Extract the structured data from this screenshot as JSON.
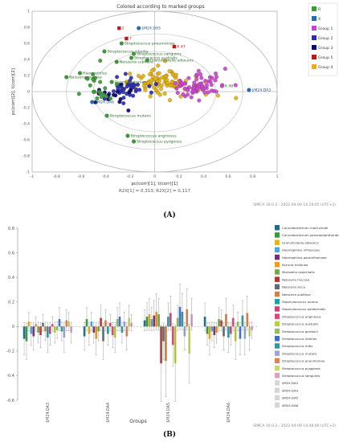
{
  "panels": {
    "a": "(A)",
    "b": "(B)"
  },
  "chart_data": [
    {
      "type": "scatter",
      "title": "Colored according to marked groups",
      "xlabel": "pc(corr)[1], t(corr)[1]",
      "ylabel": "pc(corr)[2], t(corr)[2]",
      "subtitle": "R2X[1] = 0,313;  R2X[2] = 0,117",
      "footer": "SIMCA 16.0.2 - 2022-04-09 14:19:05 (UTC+2)",
      "xlim": [
        -1,
        1
      ],
      "ylim": [
        -1,
        1
      ],
      "x_ticks": [
        "-1",
        "-0.8",
        "-0.6",
        "-0.4",
        "-0.2",
        "0",
        "0.2",
        "0.4",
        "0.6",
        "0.8",
        "1"
      ],
      "y_ticks": [
        "1",
        "0.8",
        "0.6",
        "0.4",
        "0.2",
        "0",
        "-0.2",
        "-0.4",
        "-0.6",
        "-0.8",
        "-1"
      ],
      "legend_position": "right",
      "legend": [
        {
          "label": "R",
          "color": "#3a9b35"
        },
        {
          "label": "X",
          "color": "#1f6fb5"
        },
        {
          "label": "Group 1",
          "color": "#cc44cc"
        },
        {
          "label": "Group 2",
          "color": "#2d2db0"
        },
        {
          "label": "Group 3",
          "color": "#0a0a6e"
        },
        {
          "label": "Group 5",
          "color": "#c41818"
        },
        {
          "label": "Group 4",
          "color": "#e6b012"
        }
      ],
      "labeled_points": [
        {
          "label": "Streptococcus pneumoniae",
          "x": -0.27,
          "y": 0.6,
          "group": "R"
        },
        {
          "label": "Streptococcus infantis",
          "x": -0.41,
          "y": 0.5,
          "group": "R"
        },
        {
          "label": "Streptococcus sanguinis",
          "x": -0.17,
          "y": 0.47,
          "group": "R"
        },
        {
          "label": "Streptococcus australis",
          "x": -0.19,
          "y": 0.42,
          "group": "R"
        },
        {
          "label": "Neisseria subflava",
          "x": -0.31,
          "y": 0.37,
          "group": "R"
        },
        {
          "label": "Granulicatella adiacens",
          "x": -0.06,
          "y": 0.39,
          "group": "R"
        },
        {
          "label": "Haemophilus",
          "x": -0.61,
          "y": 0.23,
          "group": "R"
        },
        {
          "label": "Neisseria mucosa",
          "x": -0.72,
          "y": 0.18,
          "group": "R"
        },
        {
          "label": "Corynebacterium",
          "x": -0.35,
          "y": 0.12,
          "group": "R"
        },
        {
          "label": "Streptococcus mutans",
          "x": -0.39,
          "y": -0.3,
          "group": "R"
        },
        {
          "label": "Streptococcus anginosus",
          "x": -0.22,
          "y": -0.55,
          "group": "R"
        },
        {
          "label": "Streptococcus pyogenes",
          "x": -0.17,
          "y": -0.62,
          "group": "R"
        },
        {
          "label": "$M24.DA5",
          "x": -0.13,
          "y": 0.79,
          "group": "X"
        },
        {
          "label": "$M24.DA3",
          "x": 0.77,
          "y": 0.02,
          "group": "X"
        },
        {
          "label": "$M24.DA6",
          "x": -0.51,
          "y": -0.13,
          "group": "X"
        },
        {
          "label": "2",
          "x": -0.29,
          "y": 0.79,
          "group": "Group 5"
        },
        {
          "label": "7",
          "x": -0.23,
          "y": 0.66,
          "group": "Group 5"
        },
        {
          "label": "K 47",
          "x": 0.16,
          "y": 0.56,
          "group": "Group 5"
        },
        {
          "label": "K 48",
          "x": 0.55,
          "y": 0.07,
          "group": "Group 1"
        }
      ],
      "clusters": [
        {
          "group": "Group 4",
          "cx": 0.08,
          "cy": 0.11,
          "sx": 0.15,
          "sy": 0.09,
          "n": 95
        },
        {
          "group": "Group 1",
          "cx": 0.33,
          "cy": 0.07,
          "sx": 0.1,
          "sy": 0.08,
          "n": 70
        },
        {
          "group": "Group 2",
          "cx": -0.22,
          "cy": 0.04,
          "sx": 0.1,
          "sy": 0.08,
          "n": 42
        },
        {
          "group": "Group 3",
          "cx": -0.38,
          "cy": -0.05,
          "sx": 0.09,
          "sy": 0.06,
          "n": 16
        },
        {
          "group": "R",
          "cx": -0.47,
          "cy": 0.06,
          "sx": 0.09,
          "sy": 0.13,
          "n": 22
        }
      ]
    },
    {
      "type": "bar",
      "xlabel": "Groups",
      "footer": "SIMCA 16.0.2 - 2022-04-09 14:08:00 (UTC+2)",
      "ylim": [
        -0.6,
        0.8
      ],
      "y_ticks": [
        "0.8",
        "0.6",
        "0.4",
        "0.2",
        "0",
        "-0.2",
        "-0.4",
        "-0.6"
      ],
      "categories": [
        "$M24.DA3",
        "$M24.DA4",
        "$M24.DA5",
        "$M24.DA6"
      ],
      "legend_position": "right",
      "series": [
        {
          "name": "Corynebacterium matruchotii",
          "color": "#1d6b8f",
          "values": [
            -0.1,
            -0.08,
            0.05,
            0.08
          ]
        },
        {
          "name": "Corynebacterium pseudodiphtheriticum",
          "color": "#2f9e3a",
          "values": [
            -0.12,
            0.06,
            0.08,
            -0.06
          ]
        },
        {
          "name": "Granulicatella adiacens",
          "color": "#e8b410",
          "values": [
            0.04,
            -0.06,
            0.1,
            -0.1
          ]
        },
        {
          "name": "Haemophilus influenzae",
          "color": "#46a7dd",
          "values": [
            -0.06,
            0.04,
            0.06,
            -0.04
          ]
        },
        {
          "name": "Haemophilus parainfluenzae",
          "color": "#7a2a7a",
          "values": [
            -0.08,
            -0.05,
            0.09,
            -0.07
          ]
        },
        {
          "name": "Kocuria kristinae",
          "color": "#f39a1a",
          "values": [
            0.02,
            -0.1,
            0.12,
            -0.05
          ]
        },
        {
          "name": "Moraxella catarrhalis",
          "color": "#6ea84a",
          "values": [
            -0.05,
            -0.04,
            0.1,
            0.06
          ]
        },
        {
          "name": "Neisseria mucosa",
          "color": "#b8352b",
          "values": [
            -0.07,
            0.07,
            -0.3,
            0.05
          ]
        },
        {
          "name": "Neisseria sicca",
          "color": "#5a6b7a",
          "values": [
            0.03,
            -0.12,
            -0.12,
            -0.08
          ]
        },
        {
          "name": "Neisseria subflava",
          "color": "#d48040",
          "values": [
            -0.04,
            0.05,
            -0.28,
            0.1
          ]
        },
        {
          "name": "Staphylococcus aureus",
          "color": "#18a3a3",
          "values": [
            -0.09,
            -0.06,
            0.08,
            -0.09
          ]
        },
        {
          "name": "Staphylococcus epidermidis",
          "color": "#d0417a",
          "values": [
            -0.06,
            0.03,
            0.11,
            -0.06
          ]
        },
        {
          "name": "Streptococcus anginosus",
          "color": "#e0457b",
          "values": [
            0.02,
            -0.07,
            -0.15,
            0.07
          ]
        },
        {
          "name": "Streptococcus australis",
          "color": "#b9d233",
          "values": [
            -0.05,
            -0.09,
            -0.3,
            -0.12
          ]
        },
        {
          "name": "Streptococcus gordonii",
          "color": "#8fbf62",
          "values": [
            -0.03,
            0.06,
            0.07,
            0.04
          ]
        },
        {
          "name": "Streptococcus infantis",
          "color": "#3d6fd0",
          "values": [
            0.06,
            0.08,
            0.16,
            -0.1
          ]
        },
        {
          "name": "Streptococcus mitis",
          "color": "#2c9a9a",
          "values": [
            -0.04,
            -0.05,
            0.12,
            0.09
          ]
        },
        {
          "name": "Streptococcus mutans",
          "color": "#98a8d8",
          "values": [
            -0.09,
            0.04,
            -0.08,
            -0.1
          ]
        },
        {
          "name": "Streptococcus pneumoniae",
          "color": "#e87e4a",
          "values": [
            0.05,
            -0.08,
            0.14,
            0.11
          ]
        },
        {
          "name": "Streptococcus pyogenes",
          "color": "#c8da66",
          "values": [
            0.04,
            0.07,
            -0.22,
            -0.08
          ]
        },
        {
          "name": "Streptococcus sanguinis",
          "color": "#dca0c6",
          "values": [
            -0.05,
            0.03,
            0.1,
            -0.03
          ]
        },
        {
          "name": "$M24.DA3",
          "color": "#d6d6d6",
          "values": [
            0,
            0,
            0,
            0
          ]
        },
        {
          "name": "$M24.DA4",
          "color": "#d6d6d6",
          "values": [
            0,
            0,
            0,
            0
          ]
        },
        {
          "name": "$M24.DA5",
          "color": "#d6d6d6",
          "values": [
            0,
            0,
            0,
            0
          ]
        },
        {
          "name": "$M24.DA6",
          "color": "#d6d6d6",
          "values": [
            0,
            0,
            0,
            0
          ]
        }
      ],
      "error_bars": true
    }
  ]
}
